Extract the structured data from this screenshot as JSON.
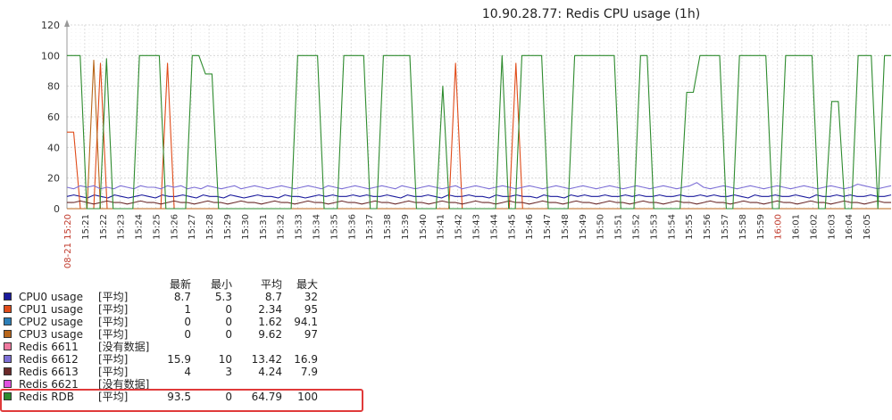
{
  "chart_data": {
    "type": "line",
    "title": "10.90.28.77: Redis CPU usage (1h)",
    "ylim": [
      0,
      120
    ],
    "yticks": [
      0,
      20,
      40,
      60,
      80,
      100,
      120
    ],
    "grid": true,
    "x_start_label": "08-21 15:20",
    "x_ticks": [
      "15:21",
      "15:22",
      "15:23",
      "15:24",
      "15:25",
      "15:26",
      "15:27",
      "15:28",
      "15:29",
      "15:30",
      "15:31",
      "15:32",
      "15:33",
      "15:34",
      "15:35",
      "15:36",
      "15:37",
      "15:38",
      "15:39",
      "15:40",
      "15:41",
      "15:42",
      "15:43",
      "15:44",
      "15:45",
      "15:46",
      "15:47",
      "15:48",
      "15:49",
      "15:50",
      "15:51",
      "15:52",
      "15:53",
      "15:54",
      "15:55",
      "15:56",
      "15:57",
      "15:58",
      "15:59",
      "16:00",
      "16:01",
      "16:02",
      "16:03",
      "16:04",
      "16:05"
    ],
    "x_highlight_tick": "16:00",
    "series": [
      {
        "name": "CPU0 usage",
        "color": "#1a1a9c",
        "values": [
          8,
          9,
          8,
          7,
          9,
          8,
          7,
          9,
          8,
          7,
          8,
          9,
          8,
          7,
          9,
          8,
          8,
          9,
          8,
          7,
          9,
          8,
          8,
          7,
          9,
          8,
          7,
          8,
          9,
          8,
          8,
          7,
          9,
          8,
          8,
          7,
          8,
          9,
          8,
          9,
          8,
          8,
          9,
          8,
          9,
          8,
          8,
          9,
          8,
          7,
          9,
          8,
          8,
          9,
          8,
          7,
          9,
          8,
          8,
          9,
          8,
          8,
          7,
          9,
          8,
          8,
          9,
          8,
          8,
          7,
          9,
          8,
          8,
          7,
          9,
          8,
          9,
          8,
          8,
          9,
          8,
          8,
          9,
          8,
          9,
          8,
          8,
          9,
          8,
          8,
          9,
          8,
          8,
          9,
          8,
          9,
          8,
          8,
          9,
          8,
          7,
          9,
          8,
          8,
          9,
          8,
          8,
          9,
          8,
          7,
          9,
          8,
          8,
          9,
          8,
          9,
          8,
          8,
          9,
          8,
          8,
          9
        ]
      },
      {
        "name": "CPU1 usage",
        "color": "#e04c1a",
        "values": [
          50,
          50,
          0,
          0,
          0,
          95,
          0,
          0,
          0,
          0,
          0,
          0,
          0,
          0,
          0,
          95,
          0,
          0,
          0,
          0,
          0,
          0,
          0,
          0,
          0,
          0,
          0,
          0,
          0,
          0,
          0,
          0,
          0,
          0,
          0,
          0,
          0,
          0,
          0,
          0,
          0,
          0,
          0,
          0,
          0,
          0,
          0,
          0,
          0,
          0,
          0,
          0,
          0,
          0,
          0,
          0,
          0,
          0,
          95,
          0,
          0,
          0,
          0,
          0,
          0,
          0,
          0,
          95,
          0,
          0,
          0,
          0,
          0,
          0,
          0,
          0,
          0,
          0,
          0,
          0,
          0,
          0,
          0,
          0,
          0,
          0,
          0,
          0,
          0,
          0,
          0,
          0,
          0,
          0,
          0,
          0,
          0,
          0,
          0,
          0,
          0,
          0,
          0,
          0,
          0,
          0,
          0,
          0,
          0,
          0,
          0,
          0,
          0,
          0,
          0,
          0,
          0,
          0,
          0,
          0,
          0,
          0,
          0,
          0
        ]
      },
      {
        "name": "CPU2 usage",
        "color": "#2c7fb8",
        "values": [
          0,
          0,
          0,
          0,
          0,
          0,
          0,
          0,
          0,
          0,
          0,
          0,
          0,
          0,
          0,
          0,
          0,
          0,
          0,
          0,
          0,
          0,
          0,
          0,
          0,
          0,
          0,
          0,
          0,
          0,
          0,
          0,
          0,
          0,
          0,
          0,
          0,
          0,
          0,
          0,
          0,
          0,
          0,
          0,
          0,
          0,
          0,
          0,
          0,
          0,
          0,
          0,
          0,
          0,
          0,
          0,
          0,
          0,
          0,
          0,
          0,
          0,
          0,
          0,
          0,
          0,
          0,
          0,
          0,
          0,
          0,
          0,
          0,
          0,
          0,
          0,
          0,
          0,
          0,
          0,
          0,
          0,
          0,
          0,
          0,
          0,
          0,
          0,
          0,
          0,
          0,
          0,
          0,
          0,
          0,
          0,
          0,
          0,
          0,
          0,
          0,
          0,
          0,
          0,
          0,
          0,
          0,
          0,
          0,
          0,
          0,
          0,
          0,
          0,
          0,
          0,
          0,
          0,
          0,
          0,
          0,
          0,
          0,
          0
        ]
      },
      {
        "name": "CPU3 usage",
        "color": "#b8661a",
        "values": [
          0,
          0,
          0,
          0,
          97,
          0,
          0,
          0,
          0,
          0,
          0,
          0,
          0,
          0,
          0,
          0,
          0,
          0,
          0,
          0,
          0,
          0,
          0,
          0,
          0,
          0,
          0,
          0,
          0,
          0,
          0,
          0,
          0,
          0,
          0,
          0,
          0,
          0,
          0,
          0,
          0,
          0,
          0,
          0,
          0,
          0,
          0,
          0,
          0,
          0,
          0,
          0,
          0,
          0,
          0,
          0,
          0,
          0,
          0,
          0,
          0,
          0,
          0,
          0,
          0,
          0,
          0,
          0,
          0,
          0,
          0,
          0,
          0,
          0,
          0,
          0,
          0,
          0,
          0,
          0,
          0,
          0,
          0,
          0,
          0,
          0,
          0,
          0,
          0,
          0,
          0,
          0,
          0,
          0,
          0,
          0,
          0,
          0,
          0,
          0,
          0,
          0,
          0,
          0,
          0,
          0,
          0,
          0,
          0,
          0,
          0,
          0,
          0,
          0,
          0,
          0,
          0,
          0,
          0,
          0,
          0,
          0,
          0,
          0
        ]
      },
      {
        "name": "Redis 6611",
        "color": "#f07aa0",
        "values": []
      },
      {
        "name": "Redis 6612",
        "color": "#7d6fd6",
        "values": [
          14,
          13,
          15,
          14,
          15,
          13,
          14,
          13,
          15,
          14,
          13,
          15,
          14,
          14,
          13,
          15,
          14,
          15,
          13,
          14,
          13,
          15,
          14,
          13,
          14,
          15,
          13,
          14,
          15,
          14,
          13,
          14,
          15,
          14,
          13,
          14,
          15,
          14,
          13,
          15,
          14,
          13,
          14,
          15,
          14,
          13,
          14,
          15,
          14,
          13,
          15,
          14,
          13,
          14,
          15,
          14,
          13,
          14,
          15,
          13,
          14,
          15,
          14,
          13,
          14,
          15,
          14,
          13,
          14,
          15,
          14,
          13,
          14,
          15,
          14,
          13,
          14,
          15,
          14,
          13,
          14,
          15,
          14,
          13,
          14,
          15,
          14,
          13,
          14,
          15,
          14,
          13,
          14,
          15,
          17,
          14,
          13,
          14,
          15,
          14,
          13,
          14,
          15,
          14,
          13,
          14,
          15,
          14,
          13,
          14,
          15,
          14,
          13,
          14,
          15,
          14,
          13,
          14,
          16,
          15,
          14,
          13,
          14,
          15
        ]
      },
      {
        "name": "Redis 6613",
        "color": "#6b2a2a",
        "values": [
          4,
          4,
          5,
          4,
          3,
          4,
          5,
          4,
          4,
          3,
          4,
          5,
          4,
          4,
          3,
          4,
          5,
          4,
          4,
          3,
          4,
          5,
          4,
          4,
          3,
          4,
          5,
          4,
          4,
          3,
          4,
          5,
          4,
          4,
          3,
          4,
          5,
          4,
          4,
          3,
          4,
          5,
          4,
          4,
          3,
          4,
          5,
          4,
          4,
          3,
          4,
          5,
          4,
          4,
          3,
          4,
          5,
          4,
          4,
          3,
          4,
          5,
          4,
          4,
          3,
          4,
          5,
          4,
          4,
          3,
          4,
          5,
          4,
          4,
          3,
          4,
          5,
          4,
          4,
          3,
          4,
          5,
          4,
          4,
          3,
          4,
          5,
          4,
          4,
          3,
          4,
          5,
          4,
          4,
          3,
          4,
          5,
          4,
          4,
          3,
          4,
          5,
          4,
          4,
          3,
          4,
          5,
          4,
          4,
          3,
          4,
          5,
          4,
          4,
          3,
          4,
          5,
          4,
          4,
          3,
          4,
          5,
          4,
          4
        ]
      },
      {
        "name": "Redis 6621",
        "color": "#e050e0",
        "values": []
      },
      {
        "name": "Redis RDB",
        "color": "#2e8b2e",
        "values": [
          100,
          100,
          100,
          0,
          0,
          0,
          98,
          0,
          0,
          0,
          0,
          100,
          100,
          100,
          100,
          0,
          0,
          0,
          0,
          100,
          100,
          88,
          88,
          0,
          0,
          0,
          0,
          0,
          0,
          0,
          0,
          0,
          0,
          0,
          0,
          100,
          100,
          100,
          100,
          0,
          0,
          0,
          100,
          100,
          100,
          100,
          0,
          0,
          100,
          100,
          100,
          100,
          100,
          0,
          0,
          0,
          0,
          80,
          0,
          0,
          0,
          0,
          0,
          0,
          0,
          0,
          100,
          0,
          0,
          100,
          100,
          100,
          100,
          0,
          0,
          0,
          0,
          100,
          100,
          100,
          100,
          100,
          100,
          100,
          0,
          0,
          0,
          100,
          100,
          0,
          0,
          0,
          0,
          0,
          76,
          76,
          100,
          100,
          100,
          100,
          0,
          0,
          100,
          100,
          100,
          100,
          100,
          0,
          0,
          100,
          100,
          100,
          100,
          100,
          0,
          0,
          70,
          70,
          0,
          0,
          100,
          100,
          100,
          0,
          100,
          100
        ]
      }
    ]
  },
  "legend": {
    "headers": {
      "last": "最新",
      "min": "最小",
      "avg": "平均",
      "max": "最大"
    },
    "rows": [
      {
        "name": "CPU0 usage",
        "color": "#1a1a9c",
        "func": "[平均]",
        "last": "8.7",
        "min": "5.3",
        "avg": "8.7",
        "max": "32"
      },
      {
        "name": "CPU1 usage",
        "color": "#e04c1a",
        "func": "[平均]",
        "last": "1",
        "min": "0",
        "avg": "2.34",
        "max": "95"
      },
      {
        "name": "CPU2 usage",
        "color": "#2c7fb8",
        "func": "[平均]",
        "last": "0",
        "min": "0",
        "avg": "1.62",
        "max": "94.1"
      },
      {
        "name": "CPU3 usage",
        "color": "#b8661a",
        "func": "[平均]",
        "last": "0",
        "min": "0",
        "avg": "9.62",
        "max": "97"
      },
      {
        "name": "Redis 6611",
        "color": "#f07aa0",
        "func": "[没有数据]",
        "last": "",
        "min": "",
        "avg": "",
        "max": ""
      },
      {
        "name": "Redis 6612",
        "color": "#7d6fd6",
        "func": "[平均]",
        "last": "15.9",
        "min": "10",
        "avg": "13.42",
        "max": "16.9"
      },
      {
        "name": "Redis 6613",
        "color": "#6b2a2a",
        "func": "[平均]",
        "last": "4",
        "min": "3",
        "avg": "4.24",
        "max": "7.9"
      },
      {
        "name": "Redis 6621",
        "color": "#e050e0",
        "func": "[没有数据]",
        "last": "",
        "min": "",
        "avg": "",
        "max": ""
      },
      {
        "name": "Redis RDB",
        "color": "#2e8b2e",
        "func": "[平均]",
        "last": "93.5",
        "min": "0",
        "avg": "64.79",
        "max": "100"
      }
    ]
  }
}
